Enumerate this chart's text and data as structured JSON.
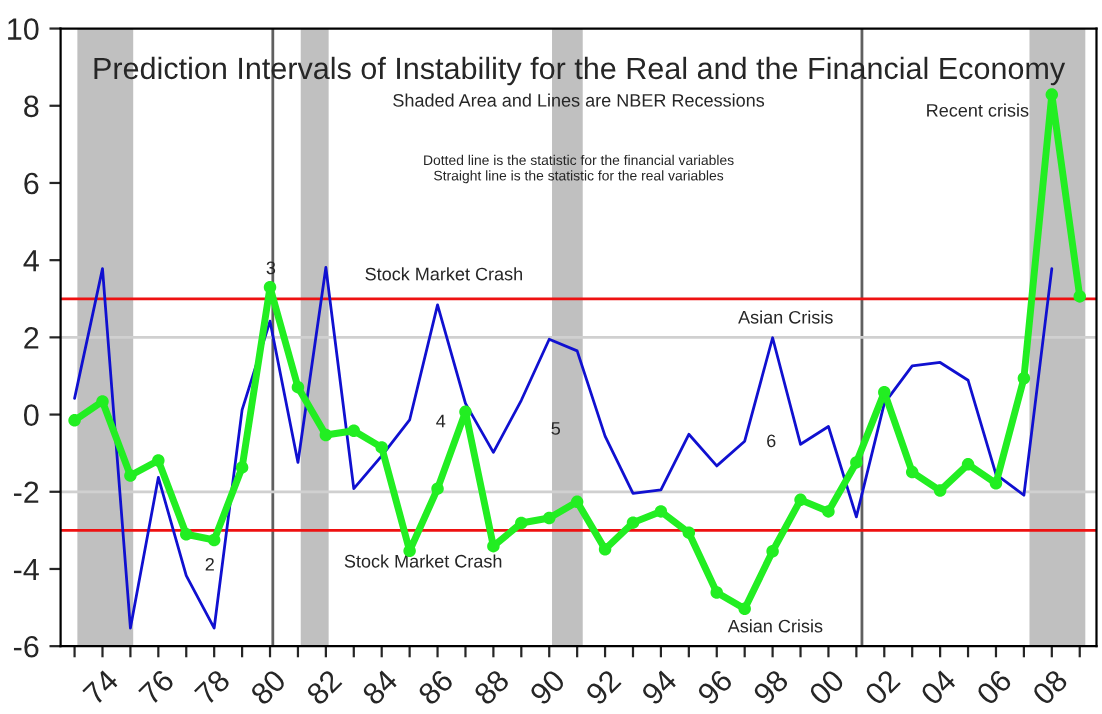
{
  "chart_data": {
    "type": "line",
    "title": "Prediction Intervals of Instability for the Real and the Financial Economy",
    "subtitle": "Shaded Area and Lines are NBER Recessions",
    "x": [
      1973,
      1974,
      1975,
      1976,
      1977,
      1978,
      1979,
      1980,
      1981,
      1982,
      1983,
      1984,
      1985,
      1986,
      1987,
      1988,
      1989,
      1990,
      1991,
      1992,
      1993,
      1994,
      1995,
      1996,
      1997,
      1998,
      1999,
      2000,
      2001,
      2002,
      2003,
      2004,
      2005,
      2006,
      2007,
      2008,
      2009
    ],
    "series": [
      {
        "color": "#1010d0",
        "marker": "none",
        "values": [
          0.42,
          3.78,
          -5.53,
          -1.63,
          -4.17,
          -5.53,
          0.12,
          2.42,
          -1.24,
          3.81,
          -1.92,
          -1.07,
          -0.14,
          2.84,
          0.29,
          -0.98,
          0.37,
          1.95,
          1.65,
          -0.56,
          -2.04,
          -1.95,
          -0.51,
          -1.33,
          -0.69,
          1.99,
          -0.77,
          -0.31,
          -2.65,
          0.29,
          1.26,
          1.35,
          0.89,
          -1.55,
          -2.09,
          3.78,
          null
        ]
      },
      {
        "color": "#22ee22",
        "marker": "circle",
        "values": [
          -0.15,
          0.34,
          -1.58,
          -1.19,
          -3.1,
          -3.25,
          -1.37,
          3.3,
          0.71,
          -0.53,
          -0.42,
          -0.85,
          -3.53,
          -1.92,
          0.07,
          -3.41,
          -2.81,
          -2.68,
          -2.26,
          -3.49,
          -2.8,
          -2.51,
          -3.06,
          -4.61,
          -5.03,
          -3.54,
          -2.21,
          -2.51,
          -1.24,
          0.58,
          -1.49,
          -1.97,
          -1.29,
          -1.78,
          0.94,
          8.29,
          3.06
        ]
      }
    ],
    "xlim": [
      1972.5,
      2009.6
    ],
    "ylim": [
      -6,
      10
    ],
    "yticks": [
      -6,
      -4,
      -2,
      0,
      2,
      4,
      6,
      8,
      {
        "value": 10,
        "label": "10"
      }
    ],
    "xticks": [
      {
        "value": 1973,
        "label": null
      },
      {
        "value": 1974,
        "label": "74"
      },
      {
        "value": 1975,
        "label": null
      },
      {
        "value": 1976,
        "label": "76"
      },
      {
        "value": 1977,
        "label": null
      },
      {
        "value": 1978,
        "label": "78"
      },
      {
        "value": 1979,
        "label": null
      },
      {
        "value": 1980,
        "label": "80"
      },
      {
        "value": 1981,
        "label": null
      },
      {
        "value": 1982,
        "label": "82"
      },
      {
        "value": 1983,
        "label": null
      },
      {
        "value": 1984,
        "label": "84"
      },
      {
        "value": 1985,
        "label": null
      },
      {
        "value": 1986,
        "label": "86"
      },
      {
        "value": 1987,
        "label": null
      },
      {
        "value": 1988,
        "label": "88"
      },
      {
        "value": 1989,
        "label": null
      },
      {
        "value": 1990,
        "label": "90"
      },
      {
        "value": 1991,
        "label": null
      },
      {
        "value": 1992,
        "label": "92"
      },
      {
        "value": 1993,
        "label": null
      },
      {
        "value": 1994,
        "label": "94"
      },
      {
        "value": 1995,
        "label": null
      },
      {
        "value": 1996,
        "label": "96"
      },
      {
        "value": 1997,
        "label": null
      },
      {
        "value": 1998,
        "label": "98"
      },
      {
        "value": 1999,
        "label": null
      },
      {
        "value": 2000,
        "label": "00"
      },
      {
        "value": 2001,
        "label": null
      },
      {
        "value": 2002,
        "label": "02"
      },
      {
        "value": 2003,
        "label": null
      },
      {
        "value": 2004,
        "label": "04"
      },
      {
        "value": 2005,
        "label": null
      },
      {
        "value": 2006,
        "label": "06"
      },
      {
        "value": 2007,
        "label": null
      },
      {
        "value": 2008,
        "label": "08"
      },
      {
        "value": 2009,
        "label": null
      }
    ],
    "bands": [
      {
        "axis": "x",
        "from": 1973.1,
        "to": 1975.1,
        "color": "#c0c0c0"
      },
      {
        "axis": "x",
        "from": 1981.1,
        "to": 1982.1,
        "color": "#c0c0c0"
      },
      {
        "axis": "x",
        "from": 1990.1,
        "to": 1991.2,
        "color": "#c0c0c0"
      },
      {
        "axis": "x",
        "from": 2007.2,
        "to": 2009.2,
        "color": "#c0c0c0"
      }
    ],
    "ref_lines": [
      {
        "axis": "x",
        "value": 1980.1,
        "color": "#606060"
      },
      {
        "axis": "x",
        "value": 2001.2,
        "color": "#606060"
      },
      {
        "axis": "y",
        "value": 2,
        "color": "#d0d0d0"
      },
      {
        "axis": "y",
        "value": -2,
        "color": "#d0d0d0"
      },
      {
        "axis": "y",
        "value": 3,
        "color": "#ee1111"
      },
      {
        "axis": "y",
        "value": -3,
        "color": "#ee1111"
      }
    ],
    "annotations": [
      "Dotted line is the statistic for the financial variables",
      "Straight line is the statistic for the real variables",
      "Stock Market Crash",
      "Stock Market Crash",
      "Asian Crisis",
      "Asian Crisis",
      "Recent crisis",
      "2",
      "3",
      "4",
      "5",
      "6"
    ],
    "grid": false,
    "legend": false
  }
}
